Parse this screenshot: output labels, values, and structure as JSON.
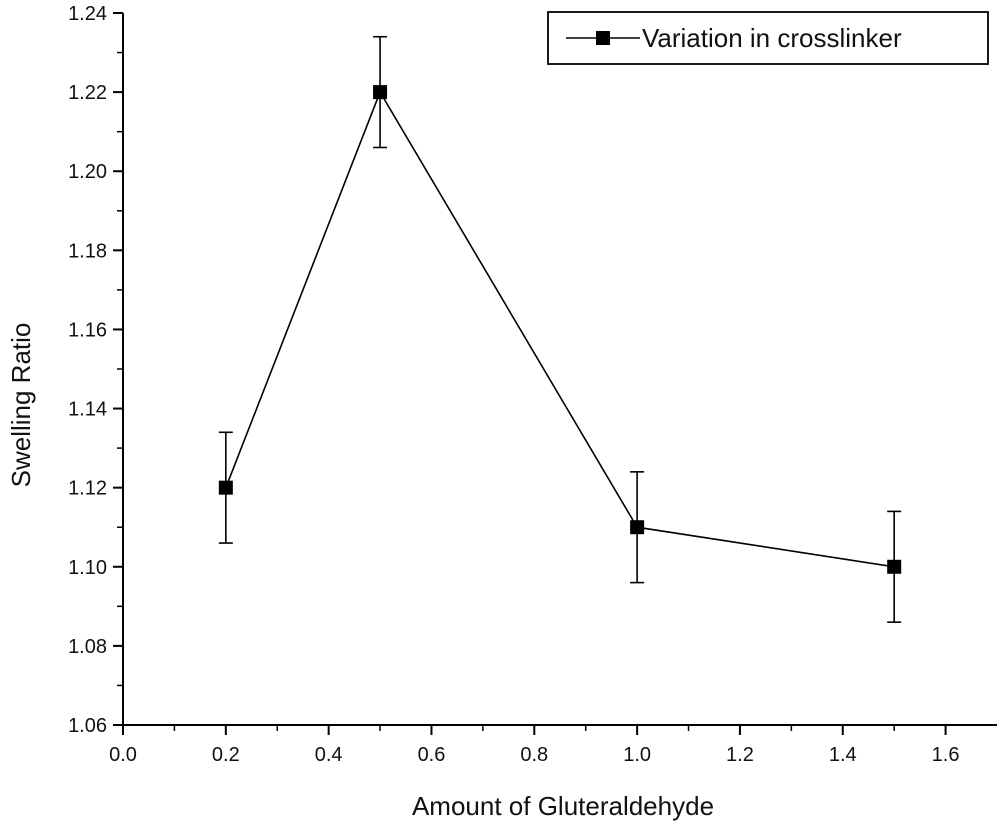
{
  "chart_data": {
    "type": "line",
    "title": "",
    "xlabel": "Amount of Gluteraldehyde",
    "ylabel": "Swelling Ratio",
    "xlim": [
      0.0,
      1.7
    ],
    "ylim": [
      1.06,
      1.24
    ],
    "x_ticks": [
      "0.0",
      "0.2",
      "0.4",
      "0.6",
      "0.8",
      "1.0",
      "1.2",
      "1.4",
      "1.6"
    ],
    "y_ticks": [
      "1.06",
      "1.08",
      "1.10",
      "1.12",
      "1.14",
      "1.16",
      "1.18",
      "1.20",
      "1.22",
      "1.24"
    ],
    "grid": false,
    "legend_position": "top-right",
    "series": [
      {
        "name": "Variation in crosslinker",
        "color": "#000000",
        "marker": "square",
        "x": [
          0.2,
          0.5,
          1.0,
          1.5
        ],
        "y": [
          1.12,
          1.22,
          1.11,
          1.1
        ],
        "error": [
          0.014,
          0.014,
          0.014,
          0.014
        ]
      }
    ]
  }
}
